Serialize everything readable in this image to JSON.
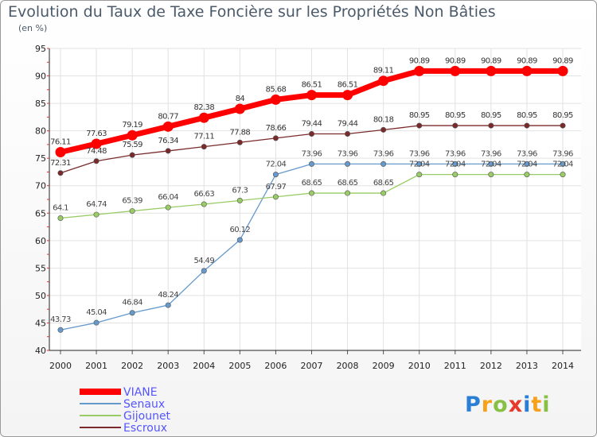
{
  "chart_data": {
    "type": "line",
    "title": "Evolution du Taux de Taxe Foncière sur les Propriétés Non Bâties",
    "ylabel": "(en %)",
    "xlabel": "",
    "ylim": [
      40,
      95
    ],
    "yticks": [
      40,
      45,
      50,
      55,
      60,
      65,
      70,
      75,
      80,
      85,
      90,
      95
    ],
    "x": [
      "2000",
      "2001",
      "2002",
      "2003",
      "2004",
      "2005",
      "2006",
      "2007",
      "2008",
      "2009",
      "2010",
      "2011",
      "2012",
      "2013",
      "2014"
    ],
    "grid": true,
    "legend_position": "bottom-left",
    "series": [
      {
        "name": "VIANE",
        "color": "#ff0000",
        "values": [
          76.11,
          77.63,
          79.19,
          80.77,
          82.38,
          84,
          85.68,
          86.51,
          86.51,
          89.11,
          90.89,
          90.89,
          90.89,
          90.89,
          90.89
        ],
        "labels": [
          "76.11",
          "77.63",
          "79.19",
          "80.77",
          "82.38",
          "84",
          "85.68",
          "86.51",
          "86.51",
          "89.11",
          "90.89",
          "90.89",
          "90.89",
          "90.89",
          "90.89"
        ]
      },
      {
        "name": "Senaux",
        "color": "#6699cc",
        "values": [
          43.73,
          45.04,
          46.84,
          48.24,
          54.49,
          60.12,
          72.04,
          73.96,
          73.96,
          73.96,
          73.96,
          73.96,
          73.96,
          73.96,
          73.96
        ],
        "labels": [
          "43.73",
          "45.04",
          "46.84",
          "48.24",
          "54.49",
          "60.12",
          "72.04",
          "73.96",
          "73.96",
          "73.96",
          "73.96",
          "73.96",
          "73.96",
          "73.96",
          "73.96"
        ]
      },
      {
        "name": "Gijounet",
        "color": "#99cc66",
        "values": [
          64.1,
          64.74,
          65.39,
          66.04,
          66.63,
          67.3,
          67.97,
          68.65,
          68.65,
          68.65,
          72.04,
          72.04,
          72.04,
          72.04,
          72.04
        ],
        "labels": [
          "64.1",
          "64.74",
          "65.39",
          "66.04",
          "66.63",
          "67.3",
          "67.97",
          "68.65",
          "68.65",
          "68.65",
          "72.04",
          "72.04",
          "72.04",
          "72.04",
          "72.04"
        ]
      },
      {
        "name": "Escroux",
        "color": "#7a2a2a",
        "values": [
          72.31,
          74.48,
          75.59,
          76.34,
          77.11,
          77.88,
          78.66,
          79.44,
          79.44,
          80.18,
          80.95,
          80.95,
          80.95,
          80.95,
          80.95
        ],
        "labels": [
          "72.31",
          "74.48",
          "75.59",
          "76.34",
          "77.11",
          "77.88",
          "78.66",
          "79.44",
          "79.44",
          "80.18",
          "80.95",
          "80.95",
          "80.95",
          "80.95",
          "80.95"
        ]
      }
    ]
  },
  "logo": {
    "letters": [
      "P",
      "r",
      "o",
      "x",
      "i",
      "t",
      "i"
    ],
    "colors": [
      "#2a7fd4",
      "#f7a11a",
      "#88c045",
      "#e8382a",
      "#2a7fd4",
      "#f7a11a",
      "#88c045"
    ]
  }
}
